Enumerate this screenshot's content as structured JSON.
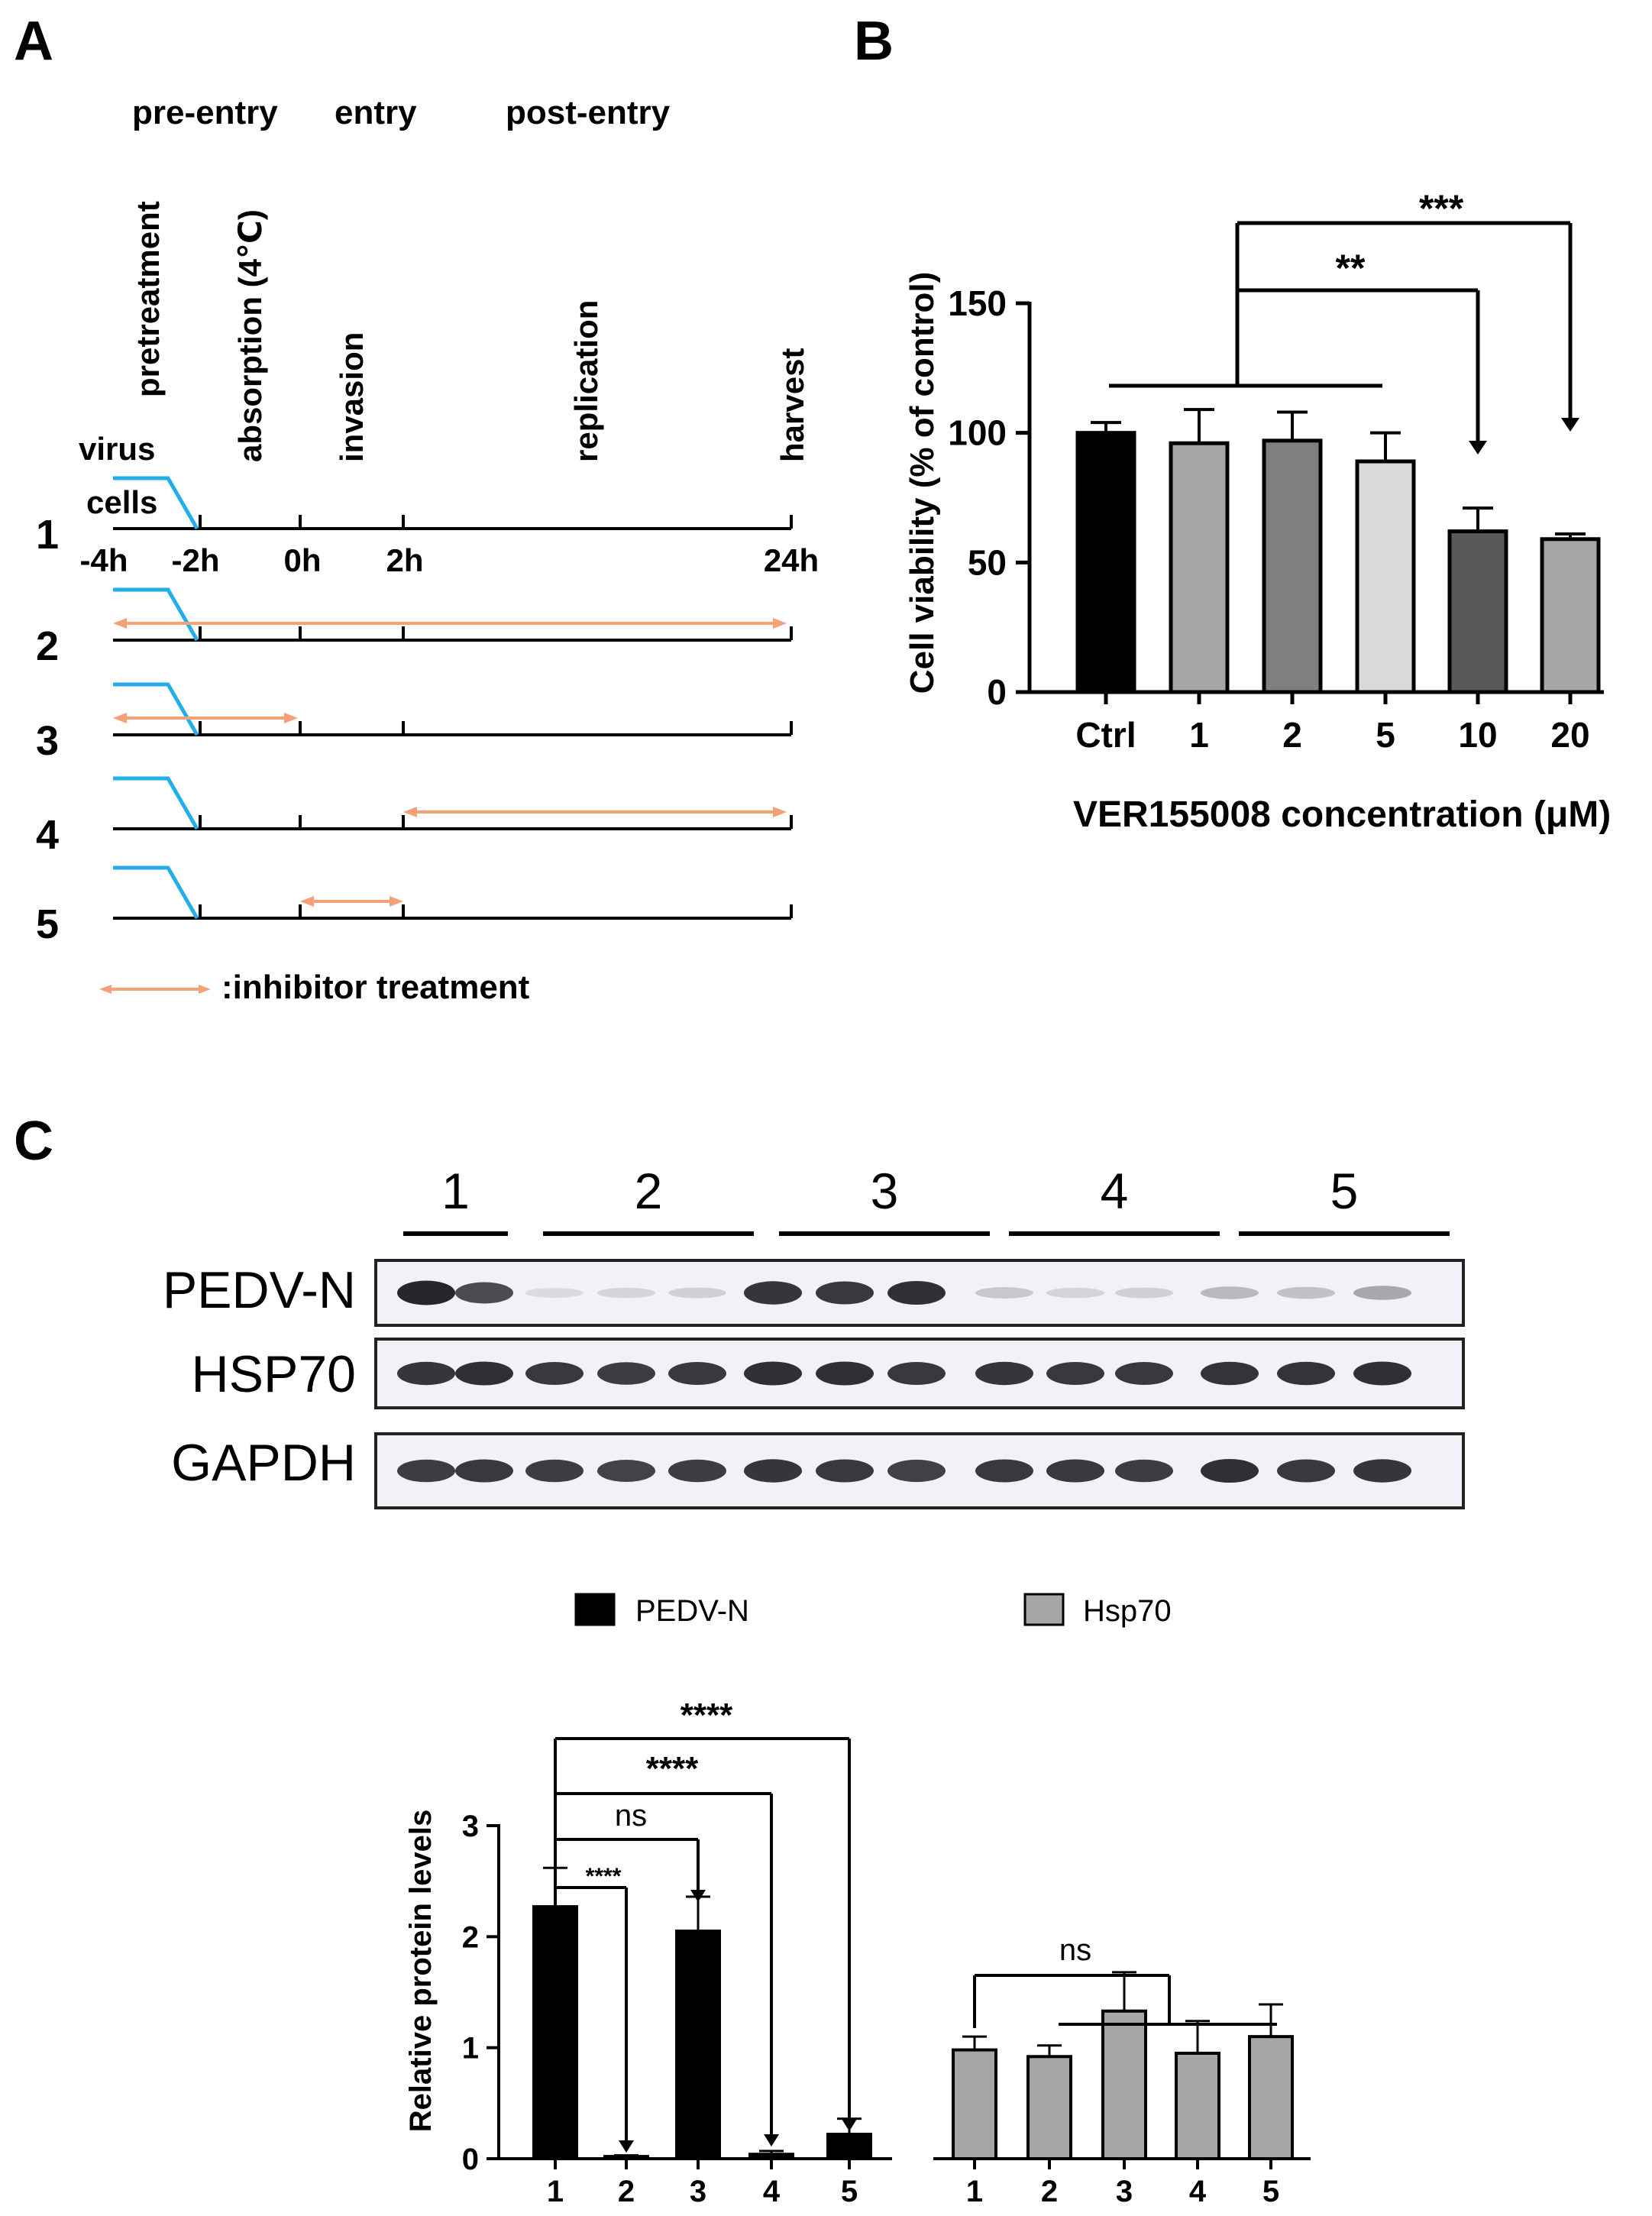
{
  "panels": {
    "a": "A",
    "b": "B",
    "c": "C"
  },
  "panel_a": {
    "phases": [
      "pre-entry",
      "entry",
      "post-entry"
    ],
    "steps": [
      "pretreatment",
      "absorption (4℃)",
      "invasion",
      "replication",
      "harvest"
    ],
    "virus_label": "virus",
    "cells_label": "cells",
    "time_labels": [
      "-4h",
      "-2h",
      "0h",
      "2h",
      "24h"
    ],
    "rows": [
      "1",
      "2",
      "3",
      "4",
      "5"
    ],
    "legend": ":inhibitor treatment",
    "colors": {
      "virus": "#22aee8",
      "treatment": "#f4a079"
    }
  },
  "panel_c_blot": {
    "groups": [
      "1",
      "2",
      "3",
      "4",
      "5"
    ],
    "bands": [
      "PEDV-N",
      "HSP70",
      "GAPDH"
    ]
  },
  "chart_data": [
    {
      "type": "bar",
      "ylabel": "Cell viability (% of control)",
      "xlabel": "VER155008 concentration (μM)",
      "categories": [
        "Ctrl",
        "1",
        "2",
        "5",
        "10",
        "20"
      ],
      "values": [
        100,
        96,
        97,
        89,
        62,
        59
      ],
      "errors": [
        4,
        13,
        11,
        11,
        9,
        2
      ],
      "colors": [
        "#000000",
        "#a6a6a6",
        "#7f7f7f",
        "#d9d9d9",
        "#595959",
        "#a6a6a6"
      ],
      "ylim": [
        0,
        150
      ],
      "yticks": [
        "0",
        "50",
        "100",
        "150"
      ],
      "significance": [
        {
          "label": "**",
          "from": "1-5",
          "to": "10"
        },
        {
          "label": "***",
          "from": "1-5",
          "to": "20"
        }
      ]
    },
    {
      "type": "bar",
      "ylabel": "Relative protein levels",
      "categories": [
        "1",
        "2",
        "3",
        "4",
        "5"
      ],
      "series": [
        {
          "name": "PEDV-N",
          "color": "#000000",
          "values": [
            2.27,
            0.02,
            2.05,
            0.04,
            0.22
          ],
          "errors": [
            0.35,
            0.01,
            0.31,
            0.03,
            0.14
          ]
        },
        {
          "name": "Hsp70",
          "color": "#a6a6a6",
          "values": [
            0.98,
            0.92,
            1.33,
            0.95,
            1.1
          ],
          "errors": [
            0.12,
            0.1,
            0.35,
            0.29,
            0.29
          ]
        }
      ],
      "ylim": [
        0,
        3
      ],
      "yticks": [
        "0",
        "1",
        "2",
        "3"
      ],
      "significance": [
        {
          "label": "****",
          "from": "1",
          "to": "2"
        },
        {
          "label": "ns",
          "from": "1",
          "to": "3"
        },
        {
          "label": "****",
          "from": "1",
          "to": "4"
        },
        {
          "label": "****",
          "from": "1",
          "to": "5"
        },
        {
          "label": "ns",
          "from": "1",
          "to": "2-5"
        }
      ]
    }
  ]
}
